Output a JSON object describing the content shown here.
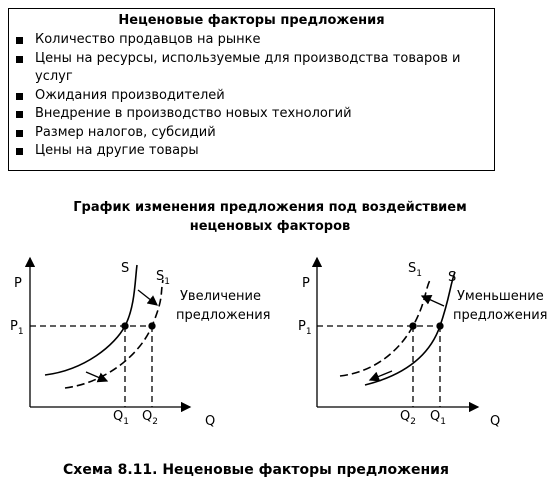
{
  "box": {
    "title": "Неценовые факторы предложения",
    "items": [
      "Количество продавцов на рынке",
      "Цены на ресурсы, используемые для производства товаров и услуг",
      "Ожидания производителей",
      "Внедрение в производство новых технологий",
      "Размер налогов, субсидий",
      "Цены на другие товары"
    ]
  },
  "figure_title": [
    "График изменения предложения под воздействием",
    "неценовых факторов"
  ],
  "graphs": [
    {
      "p": "P",
      "p1": {
        "main": "P",
        "sub": "1"
      },
      "q": "Q",
      "s": "S",
      "s1": {
        "main": "S",
        "sub": "1"
      },
      "qa": {
        "main": "Q",
        "sub": "1"
      },
      "qb": {
        "main": "Q",
        "sub": "2"
      },
      "note": [
        "Увеличение",
        "предложения"
      ]
    },
    {
      "p": "P",
      "p1": {
        "main": "P",
        "sub": "1"
      },
      "q": "Q",
      "s": "S",
      "s1": {
        "main": "S",
        "sub": "1"
      },
      "qa": {
        "main": "Q",
        "sub": "2"
      },
      "qb": {
        "main": "Q",
        "sub": "1"
      },
      "note": [
        "Уменьшение",
        "предложения"
      ]
    }
  ],
  "caption": "Схема 8.11. Неценовые факторы предложения"
}
